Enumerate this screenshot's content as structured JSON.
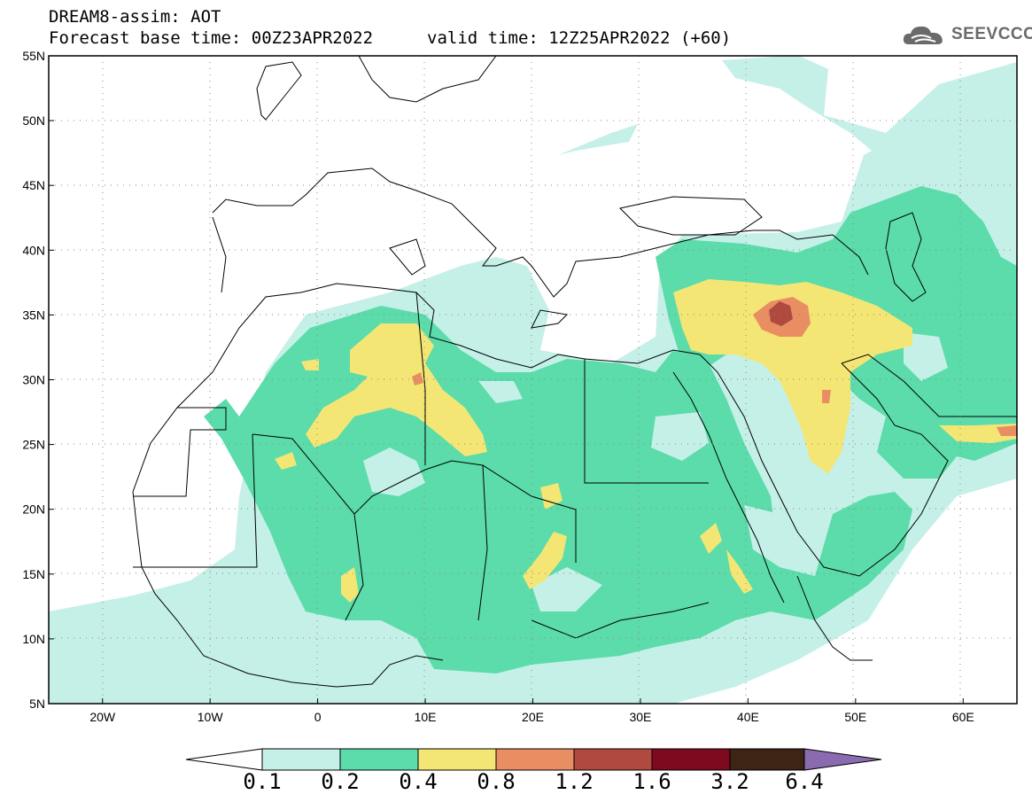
{
  "header": {
    "title": "DREAM8-assim: AOT",
    "base_time": "Forecast base time: 00Z23APR2022",
    "valid_time": "valid time: 12Z25APR2022 (+60)"
  },
  "logo": {
    "text": "SEEVCCC",
    "icon": "cloud-icon"
  },
  "map": {
    "lon_range": [
      -25,
      65
    ],
    "lat_range": [
      5,
      55
    ],
    "lat_ticks": [
      "5N",
      "10N",
      "15N",
      "20N",
      "25N",
      "30N",
      "35N",
      "40N",
      "45N",
      "50N",
      "55N"
    ],
    "lon_ticks": [
      "20W",
      "10W",
      "0",
      "10E",
      "20E",
      "30E",
      "40E",
      "50E",
      "60E"
    ],
    "gridlines": "dotted"
  },
  "colorbar": {
    "labels": [
      "0.1",
      "0.2",
      "0.4",
      "0.8",
      "1.2",
      "1.6",
      "3.2",
      "6.4"
    ],
    "colors": [
      "#ffffff",
      "#c4f0e8",
      "#5bdcaa",
      "#f3e675",
      "#e98e63",
      "#b04a3e",
      "#7d0a1f",
      "#3d2414",
      "#8a6bb0"
    ]
  },
  "colors": {
    "aot_0_1": "#c4f0e8",
    "aot_0_2": "#5bdcaa",
    "aot_0_4": "#f3e675",
    "aot_0_8": "#e98e63",
    "aot_1_2": "#b04a3e"
  }
}
